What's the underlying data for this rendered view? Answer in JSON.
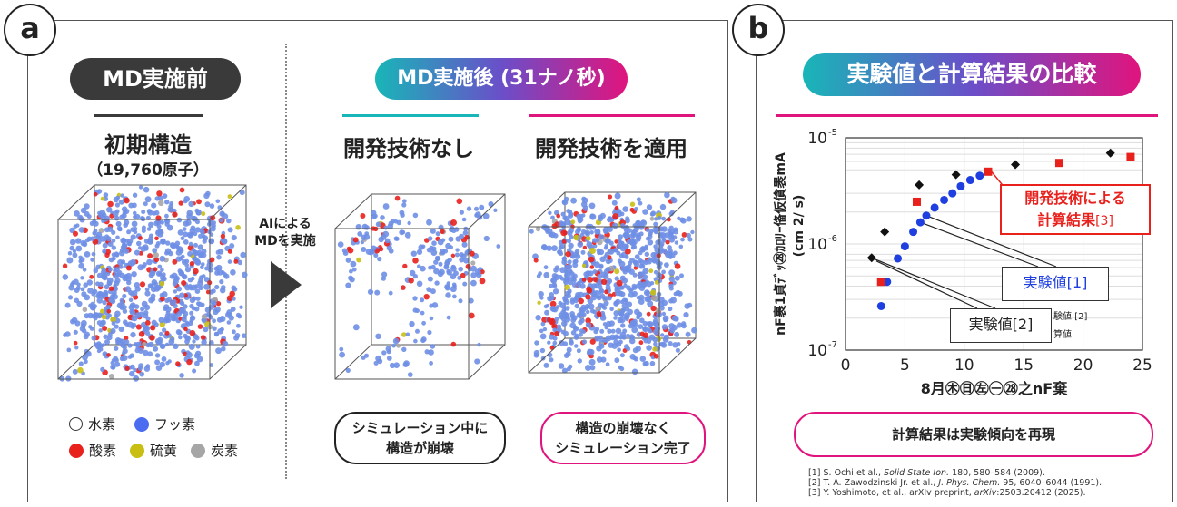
{
  "panel_a": {
    "letter": "a",
    "before_title": "MD実施前",
    "after_title": "MD実施後 (31ナノ秒)",
    "initial_heading": "初期構造",
    "initial_sub": "（19,760原子）",
    "arrow_label_1": "AIによる",
    "arrow_label_2": "MDを実施",
    "without_heading": "開発技術なし",
    "with_heading": "開発技術を適用",
    "legend": [
      {
        "label": "水素",
        "color": "#ffffff"
      },
      {
        "label": "フッ素",
        "color": "#4a6cf0"
      },
      {
        "label": "酸素",
        "color": "#e8211d"
      },
      {
        "label": "硫黄",
        "color": "#c8bf12"
      },
      {
        "label": "炭素",
        "color": "#a6a6a6"
      }
    ],
    "note_without_1": "シミュレーション中に",
    "note_without_2": "構造が崩壊",
    "note_with_1": "構造の崩壊なく",
    "note_with_2": "シミュレーション完了"
  },
  "panel_b": {
    "letter": "b",
    "title": "実験値と計算結果の比較",
    "ylabel": "nF裹1貞ﾃﾞｯ㉘ｶﾛﾘｰ俻仮僋褁mA",
    "yunit": "(cm 2/ s)",
    "xlabel": "8月㊍㊐㊧㊀㉘之nF棄",
    "callout_dev_1": "開発技術による",
    "callout_dev_2": "計算結果",
    "callout_dev_ref": "[3]",
    "callout_exp1": "実験値[1]",
    "callout_exp2": "実験値[2]",
    "small_label_1": "験値 [2]",
    "small_label_2": "算値",
    "conclusion": "計算結果は実験傾向を再現",
    "references": [
      {
        "num": "[1]",
        "authors": "S. Ochi et al., ",
        "journal": "Solid State Ion.",
        "rest": " 180, 580–584 (2009)."
      },
      {
        "num": "[2]",
        "authors": "T. A. Zawodzinski Jr. et al., ",
        "journal": "J. Phys. Chem.",
        "rest": " 95, 6040–6044 (1991)."
      },
      {
        "num": "[3]",
        "authors": "Y. Yoshimoto, et al., arXIv preprint, ",
        "journal": "arXiv",
        "rest": ":2503.20412 (2025)."
      }
    ]
  },
  "chart_data": {
    "type": "scatter",
    "xlabel": "8月㊍㊐㊧㊀㉘之nF棄",
    "ylabel": "nF裹1貞ﾃﾞｯ㉘ｶﾛﾘｰ俻仮僋褁mA (cm 2/ s)",
    "xlim": [
      0,
      25
    ],
    "ylim": [
      1e-07,
      1e-05
    ],
    "yscale": "log",
    "xticks": [
      0,
      5,
      10,
      15,
      20,
      25
    ],
    "yticks": [
      "10-7",
      "10-6",
      "10-5"
    ],
    "grid": true,
    "series": [
      {
        "name": "実験値[1]",
        "marker": "circle",
        "color": "#1f3fe0",
        "x": [
          3.0,
          3.5,
          4.4,
          5.0,
          5.7,
          6.3,
          6.8,
          7.5,
          8.3,
          9.0,
          9.7,
          10.5,
          11.3
        ],
        "y": [
          2.6e-07,
          4.4e-07,
          7.3e-07,
          9.5e-07,
          1.3e-06,
          1.6e-06,
          1.85e-06,
          2.2e-06,
          2.6e-06,
          3e-06,
          3.5e-06,
          4e-06,
          4.4e-06
        ]
      },
      {
        "name": "実験値[2]",
        "marker": "diamond",
        "color": "#111111",
        "x": [
          2.2,
          3.3,
          6.2,
          9.3,
          14.3,
          22.3
        ],
        "y": [
          7.4e-07,
          1.3e-06,
          3.6e-06,
          4.5e-06,
          5.6e-06,
          7.2e-06
        ]
      },
      {
        "name": "開発技術による計算結果[3]",
        "marker": "square",
        "color": "#e8211d",
        "x": [
          3.0,
          6.0,
          12.0,
          18.0,
          24.0
        ],
        "y": [
          4.4e-07,
          2.5e-06,
          4.8e-06,
          5.8e-06,
          6.6e-06
        ]
      }
    ]
  },
  "colors": {
    "accent_pink": "#e0147d",
    "accent_teal": "#18b6b8",
    "red": "#e8211d",
    "blue": "#1f3fe0"
  }
}
